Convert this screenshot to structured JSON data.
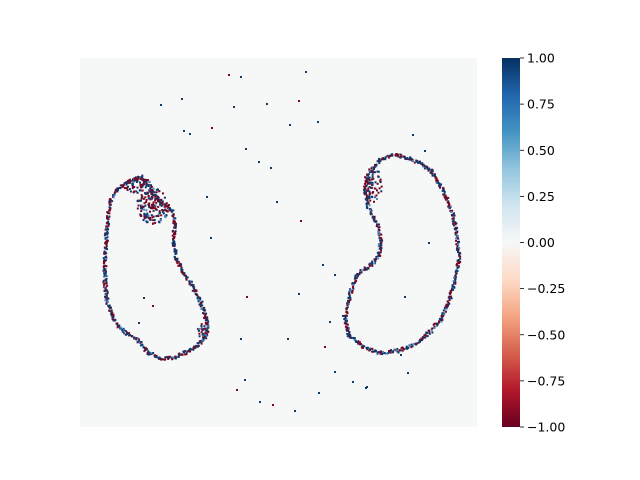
{
  "chart_data": {
    "type": "heatmap",
    "title": "",
    "xlabel": "",
    "ylabel": "",
    "axes_visible": false,
    "background_value": 0.0,
    "colormap": "RdBu",
    "colorbar": {
      "range": [
        -1.0,
        1.0
      ],
      "ticks": [
        1.0,
        0.75,
        0.5,
        0.25,
        0.0,
        -0.25,
        -0.5,
        -0.75,
        -1.0
      ],
      "tick_labels": [
        "1.00",
        "0.75",
        "0.50",
        "0.25",
        "0.00",
        "−0.25",
        "−0.50",
        "−0.75",
        "−1.00"
      ],
      "stops": [
        "#67001f",
        "#b2182b",
        "#d6604d",
        "#f4a582",
        "#fddbc7",
        "#f7f7f7",
        "#d1e5f0",
        "#92c5de",
        "#4393c3",
        "#2166ac",
        "#053061"
      ]
    },
    "features": [
      {
        "kind": "outline",
        "values": "mixed +1 / -1",
        "description": "left kidney-shaped contour"
      },
      {
        "kind": "outline",
        "values": "mixed +1 / -1",
        "description": "right kidney-shaped contour"
      },
      {
        "kind": "scattered_pixels",
        "values": "mostly +1"
      }
    ]
  }
}
